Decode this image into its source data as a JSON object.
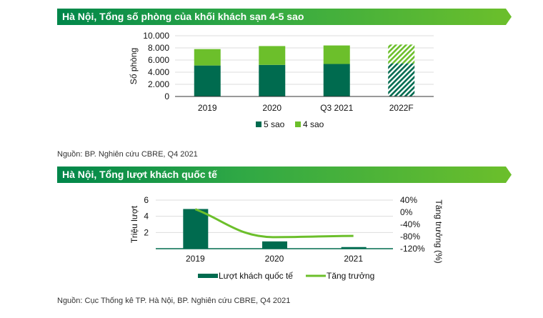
{
  "section1": {
    "title": "Hà Nội, Tổng số phòng của khối khách sạn 4-5 sao",
    "source": "Nguồn: BP. Nghiên cứu CBRE, Q4 2021"
  },
  "section2": {
    "title": "Hà Nội, Tổng lượt khách quốc tế",
    "source": "Nguồn: Cục Thống kê TP. Hà Nội, BP. Nghiên cứu CBRE, Q4 2021"
  },
  "chart_data": [
    {
      "type": "bar",
      "stacked": true,
      "categories": [
        "2019",
        "2020",
        "Q3 2021",
        "2022F"
      ],
      "series": [
        {
          "name": "5 sao",
          "values": [
            5100,
            5200,
            5350,
            5450
          ],
          "color": "#006b4f"
        },
        {
          "name": "4 sao",
          "values": [
            2700,
            3100,
            3050,
            3100
          ],
          "color": "#6cbf2b"
        }
      ],
      "forecast_hatched": [
        "2022F"
      ],
      "ylabel": "Số phòng",
      "ylim": [
        0,
        10000
      ],
      "yticks": [
        "0",
        "2.000",
        "4.000",
        "6.000",
        "8.000",
        "10.000"
      ],
      "grid": true,
      "legend": "bottom"
    },
    {
      "type": "bar+line",
      "categories": [
        "2019",
        "2020",
        "2021"
      ],
      "series": [
        {
          "name": "Lượt khách quốc tế",
          "type": "bar",
          "axis": "left",
          "values": [
            4.9,
            0.9,
            0.2
          ],
          "color": "#006b4f"
        },
        {
          "name": "Tăng trưởng",
          "type": "line",
          "axis": "right",
          "values": [
            10,
            -82,
            -78
          ],
          "color": "#6cbf2b"
        }
      ],
      "ylabel": "Triệu lượt",
      "ylim": [
        0,
        6
      ],
      "yticks": [
        "2",
        "4",
        "6"
      ],
      "y2label": "Tăng trưởng (%)",
      "y2lim": [
        -120,
        40
      ],
      "y2ticks": [
        "40%",
        "0%",
        "-40%",
        "-80%",
        "-120%"
      ],
      "grid": true,
      "legend": "bottom"
    }
  ]
}
